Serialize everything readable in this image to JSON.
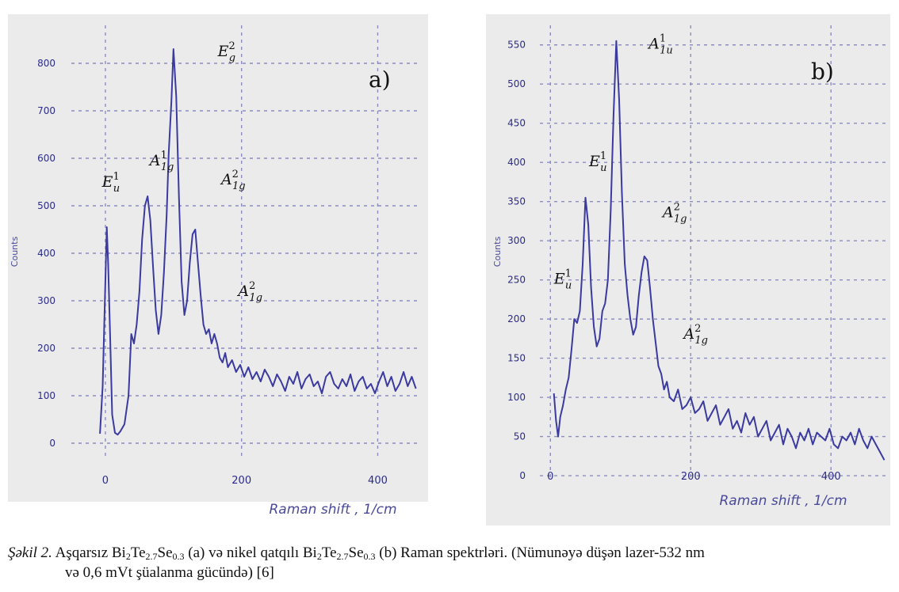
{
  "chart_data": [
    {
      "type": "line",
      "panel_label": "a)",
      "xlabel": "Raman shift , 1/cm",
      "ylabel": "Counts",
      "xlim": [
        -50,
        460
      ],
      "ylim": [
        -30,
        880
      ],
      "xticks": [
        0,
        200,
        400
      ],
      "yticks": [
        0,
        100,
        200,
        300,
        400,
        500,
        600,
        700,
        800
      ],
      "grid": true,
      "line_color": "#3a3aa0",
      "x": [
        -8,
        -4,
        0,
        2,
        4,
        7,
        10,
        14,
        18,
        22,
        28,
        34,
        38,
        42,
        46,
        50,
        54,
        58,
        62,
        66,
        70,
        74,
        78,
        82,
        86,
        90,
        93,
        97,
        100,
        104,
        108,
        112,
        116,
        120,
        124,
        128,
        132,
        136,
        140,
        144,
        148,
        152,
        156,
        160,
        164,
        168,
        172,
        176,
        180,
        186,
        192,
        198,
        204,
        210,
        216,
        222,
        228,
        234,
        240,
        246,
        252,
        258,
        264,
        270,
        276,
        282,
        288,
        294,
        300,
        306,
        312,
        318,
        324,
        330,
        336,
        342,
        348,
        354,
        360,
        366,
        372,
        378,
        384,
        390,
        396,
        402,
        408,
        414,
        420,
        426,
        432,
        438,
        444,
        450,
        456
      ],
      "y": [
        20,
        120,
        340,
        455,
        380,
        220,
        60,
        22,
        18,
        25,
        40,
        100,
        230,
        210,
        250,
        320,
        430,
        500,
        520,
        470,
        370,
        280,
        230,
        270,
        360,
        480,
        610,
        720,
        830,
        730,
        520,
        340,
        270,
        300,
        380,
        440,
        450,
        380,
        310,
        250,
        230,
        240,
        210,
        230,
        210,
        180,
        170,
        190,
        160,
        175,
        150,
        165,
        140,
        160,
        135,
        150,
        130,
        155,
        140,
        120,
        145,
        130,
        110,
        140,
        125,
        150,
        115,
        135,
        145,
        120,
        130,
        105,
        140,
        150,
        125,
        115,
        135,
        120,
        145,
        110,
        130,
        140,
        115,
        125,
        105,
        130,
        150,
        120,
        140,
        110,
        125,
        150,
        120,
        140,
        115
      ],
      "annotations": [
        {
          "label": "E_u^1",
          "x": -5,
          "y": 540
        },
        {
          "label": "A_1g^1",
          "x": 65,
          "y": 585
        },
        {
          "label": "E_g^2",
          "x": 165,
          "y": 815
        },
        {
          "label": "A_1g^2",
          "x": 170,
          "y": 545
        },
        {
          "label": "A_1g^2",
          "x": 195,
          "y": 310
        }
      ]
    },
    {
      "type": "line",
      "panel_label": "b)",
      "xlabel": "Raman shift , 1/cm",
      "ylabel": "Counts",
      "xlim": [
        -15,
        480
      ],
      "ylim": [
        -5,
        575
      ],
      "xticks": [
        0,
        200,
        400
      ],
      "yticks": [
        0,
        50,
        100,
        150,
        200,
        250,
        300,
        350,
        400,
        450,
        500,
        550
      ],
      "grid": true,
      "line_color": "#3a3aa0",
      "x": [
        5,
        8,
        11,
        14,
        18,
        22,
        26,
        30,
        34,
        38,
        42,
        46,
        50,
        54,
        58,
        62,
        66,
        70,
        74,
        78,
        82,
        86,
        90,
        94,
        98,
        102,
        106,
        110,
        114,
        118,
        122,
        126,
        130,
        134,
        138,
        142,
        146,
        150,
        154,
        158,
        162,
        166,
        170,
        176,
        182,
        188,
        194,
        200,
        206,
        212,
        218,
        224,
        230,
        236,
        242,
        248,
        254,
        260,
        266,
        272,
        278,
        284,
        290,
        296,
        302,
        308,
        314,
        320,
        326,
        332,
        338,
        344,
        350,
        356,
        362,
        368,
        374,
        380,
        386,
        392,
        398,
        404,
        410,
        416,
        422,
        428,
        434,
        440,
        446,
        452,
        458,
        464,
        470,
        476
      ],
      "y": [
        105,
        70,
        50,
        75,
        90,
        110,
        125,
        160,
        200,
        195,
        210,
        270,
        355,
        320,
        240,
        190,
        165,
        175,
        210,
        220,
        250,
        340,
        460,
        555,
        480,
        360,
        270,
        230,
        200,
        180,
        190,
        230,
        260,
        280,
        275,
        240,
        200,
        170,
        140,
        130,
        110,
        120,
        100,
        95,
        110,
        85,
        90,
        100,
        80,
        85,
        95,
        70,
        80,
        90,
        65,
        75,
        85,
        60,
        70,
        55,
        80,
        65,
        75,
        50,
        60,
        70,
        45,
        55,
        65,
        40,
        60,
        50,
        35,
        55,
        45,
        60,
        40,
        55,
        50,
        45,
        60,
        40,
        35,
        50,
        45,
        55,
        40,
        60,
        45,
        35,
        50,
        40,
        30,
        20
      ],
      "annotations": [
        {
          "label": "A_1u^1",
          "x": 140,
          "y": 545
        },
        {
          "label": "E_u^1",
          "x": 55,
          "y": 395
        },
        {
          "label": "A_1g^2",
          "x": 160,
          "y": 330
        },
        {
          "label": "E_u^1",
          "x": 5,
          "y": 245
        },
        {
          "label": "A_1g^2",
          "x": 190,
          "y": 175
        }
      ]
    }
  ],
  "caption": {
    "lead": "Şəkil 2.",
    "text1": " Aşqarsız Bi",
    "s1": "2",
    "t2": "Te",
    "s2": "2.7",
    "t3": "Se",
    "s3": "0.3",
    "t4": " (a) və nikel qatqılı Bi",
    "s4": "2",
    "t5": "Te",
    "s5": "2.7",
    "t6": "Se",
    "s6": "0.3",
    "t7": " (b) Raman spektrləri. (Nümunəyə düşən lazer-532 nm",
    "line2": "və 0,6 mVt şüalanma gücündə) [6]"
  }
}
